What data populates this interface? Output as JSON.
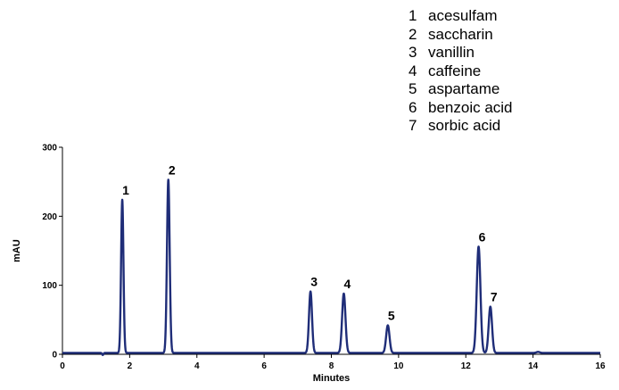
{
  "legend": [
    {
      "num": "1",
      "name": "acesulfam"
    },
    {
      "num": "2",
      "name": "saccharin"
    },
    {
      "num": "3",
      "name": "vanillin"
    },
    {
      "num": "4",
      "name": "caffeine"
    },
    {
      "num": "5",
      "name": "aspartame"
    },
    {
      "num": "6",
      "name": "benzoic acid"
    },
    {
      "num": "7",
      "name": "sorbic acid"
    }
  ],
  "chart_data": {
    "type": "line",
    "xlabel": "Minutes",
    "ylabel": "mAU",
    "xlim": [
      0,
      16
    ],
    "ylim": [
      0,
      300
    ],
    "xticks": [
      0,
      2,
      4,
      6,
      8,
      10,
      12,
      14,
      16
    ],
    "yticks": [
      0,
      100,
      200,
      300
    ],
    "grid": false,
    "line_color": "#1f2d78",
    "baseline": 2,
    "peaks": [
      {
        "label": "1",
        "x": 1.78,
        "y": 222,
        "width": 0.035
      },
      {
        "label": "2",
        "x": 3.15,
        "y": 251,
        "width": 0.04
      },
      {
        "label": "3",
        "x": 7.38,
        "y": 89,
        "width": 0.045
      },
      {
        "label": "4",
        "x": 8.37,
        "y": 86,
        "width": 0.05
      },
      {
        "label": "5",
        "x": 9.68,
        "y": 40,
        "width": 0.05
      },
      {
        "label": "6",
        "x": 12.38,
        "y": 154,
        "width": 0.055
      },
      {
        "label": "7",
        "x": 12.73,
        "y": 67,
        "width": 0.05
      }
    ]
  }
}
